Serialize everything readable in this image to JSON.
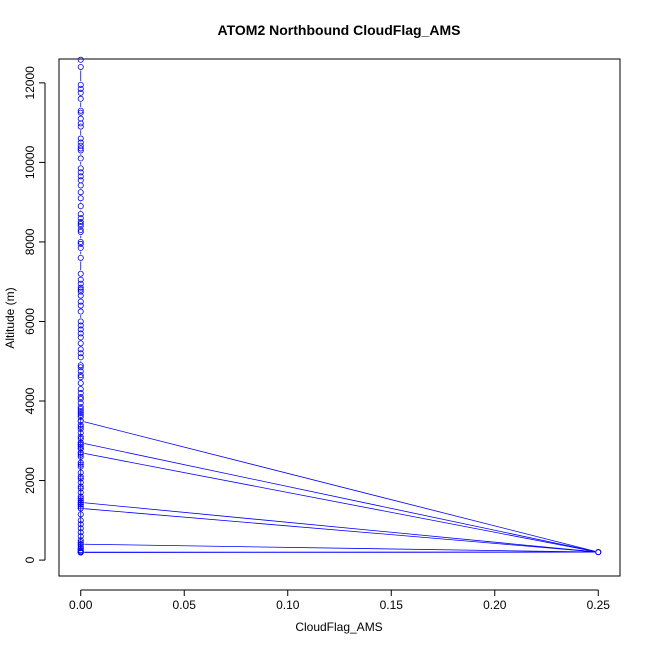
{
  "chart_data": {
    "type": "line",
    "title": "ATOM2 Northbound CloudFlag_AMS",
    "xlabel": "CloudFlag_AMS",
    "ylabel": "Altitude (m)",
    "xlim": [
      -0.0105,
      0.2605
    ],
    "ylim": [
      -400,
      12600
    ],
    "xticks": [
      "0.00",
      "0.05",
      "0.10",
      "0.15",
      "0.20",
      "0.25"
    ],
    "yticks": [
      "0",
      "2000",
      "4000",
      "6000",
      "8000",
      "10000",
      "12000"
    ],
    "grid": false,
    "series_color": "#0000ff",
    "series": [
      {
        "x": [
          0,
          0,
          0,
          0,
          0,
          0,
          0,
          0,
          0,
          0,
          0,
          0,
          0,
          0,
          0,
          0,
          0,
          0,
          0,
          0,
          0,
          0,
          0,
          0,
          0,
          0,
          0,
          0,
          0,
          0,
          0,
          0,
          0,
          0,
          0,
          0,
          0,
          0,
          0,
          0,
          0,
          0,
          0,
          0,
          0,
          0,
          0,
          0,
          0,
          0,
          0,
          0,
          0,
          0,
          0,
          0,
          0,
          0,
          0,
          0,
          0,
          0,
          0,
          0,
          0,
          0,
          0,
          0,
          0,
          0,
          0,
          0,
          0,
          0,
          0,
          0,
          0,
          0,
          0,
          0,
          0,
          0,
          0,
          0,
          0,
          0,
          0,
          0,
          0,
          0,
          0,
          0,
          0,
          0,
          0,
          0,
          0,
          0,
          0,
          0,
          0,
          0,
          0,
          0,
          0,
          0,
          0,
          0,
          0,
          0,
          0,
          0,
          0,
          0,
          0,
          0,
          0,
          0.25,
          0,
          0,
          0,
          0,
          0,
          0.25,
          0,
          0,
          0,
          0,
          0.25,
          0,
          0,
          0,
          0,
          0,
          0.25,
          0
        ],
        "y": [
          12580,
          12400,
          11950,
          11850,
          11750,
          11600,
          11300,
          11250,
          11100,
          10980,
          10900,
          10600,
          10500,
          10420,
          10350,
          10300,
          10100,
          9850,
          9750,
          9650,
          9550,
          9420,
          9250,
          9100,
          8900,
          8700,
          8600,
          8500,
          8450,
          8400,
          8300,
          8250,
          8000,
          7950,
          7850,
          7600,
          7200,
          7050,
          6950,
          6850,
          6800,
          6750,
          6650,
          6500,
          6400,
          6250,
          6000,
          5900,
          5800,
          5700,
          5600,
          5450,
          5300,
          5200,
          5100,
          4900,
          4850,
          4750,
          4650,
          4600,
          4450,
          4300,
          4200,
          4100,
          4050,
          3950,
          3850,
          3800,
          3750,
          3650,
          3500,
          3400,
          3350,
          3300,
          3200,
          3100,
          3050,
          2950,
          2900,
          2800,
          2700,
          2650,
          2600,
          2450,
          2400,
          2350,
          2200,
          2100,
          2050,
          1950,
          1850,
          1800,
          1700,
          1600,
          1550,
          1500,
          1450,
          1400,
          1300,
          1150,
          1000,
          900,
          800,
          700,
          600,
          500,
          450,
          400,
          350,
          300,
          250,
          220,
          200,
          190,
          3700,
          3600,
          3500,
          200,
          2950,
          2900,
          2850,
          2800,
          2700,
          200,
          1450,
          1400,
          1350,
          1300,
          200,
          400,
          300,
          250,
          200,
          190,
          200,
          200
        ]
      }
    ]
  }
}
